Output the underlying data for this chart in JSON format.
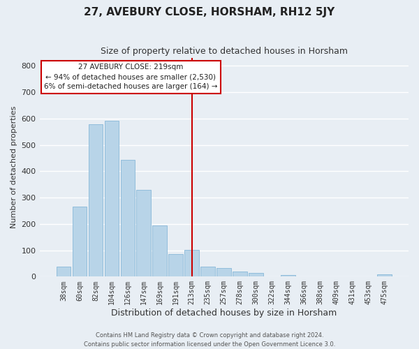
{
  "title": "27, AVEBURY CLOSE, HORSHAM, RH12 5JY",
  "subtitle": "Size of property relative to detached houses in Horsham",
  "xlabel": "Distribution of detached houses by size in Horsham",
  "ylabel": "Number of detached properties",
  "bar_labels": [
    "38sqm",
    "60sqm",
    "82sqm",
    "104sqm",
    "126sqm",
    "147sqm",
    "169sqm",
    "191sqm",
    "213sqm",
    "235sqm",
    "257sqm",
    "278sqm",
    "300sqm",
    "322sqm",
    "344sqm",
    "366sqm",
    "388sqm",
    "409sqm",
    "431sqm",
    "453sqm",
    "475sqm"
  ],
  "bar_heights": [
    38,
    265,
    578,
    591,
    444,
    329,
    195,
    86,
    101,
    38,
    33,
    20,
    13,
    0,
    6,
    0,
    0,
    0,
    0,
    0,
    8
  ],
  "bar_color": "#b8d4e8",
  "bar_edge_color": "#88b8d8",
  "vline_x_idx": 8,
  "vline_color": "#cc0000",
  "ylim": [
    0,
    830
  ],
  "yticks": [
    0,
    100,
    200,
    300,
    400,
    500,
    600,
    700,
    800
  ],
  "annotation_title": "27 AVEBURY CLOSE: 219sqm",
  "annotation_line1": "← 94% of detached houses are smaller (2,530)",
  "annotation_line2": "6% of semi-detached houses are larger (164) →",
  "annotation_box_color": "#ffffff",
  "annotation_box_edge": "#cc0000",
  "footer1": "Contains HM Land Registry data © Crown copyright and database right 2024.",
  "footer2": "Contains public sector information licensed under the Open Government Licence 3.0.",
  "background_color": "#e8eef4",
  "grid_color": "#ffffff",
  "title_fontsize": 11,
  "subtitle_fontsize": 9,
  "xlabel_fontsize": 9,
  "ylabel_fontsize": 8,
  "tick_fontsize": 7,
  "ytick_fontsize": 8,
  "footer_fontsize": 6
}
